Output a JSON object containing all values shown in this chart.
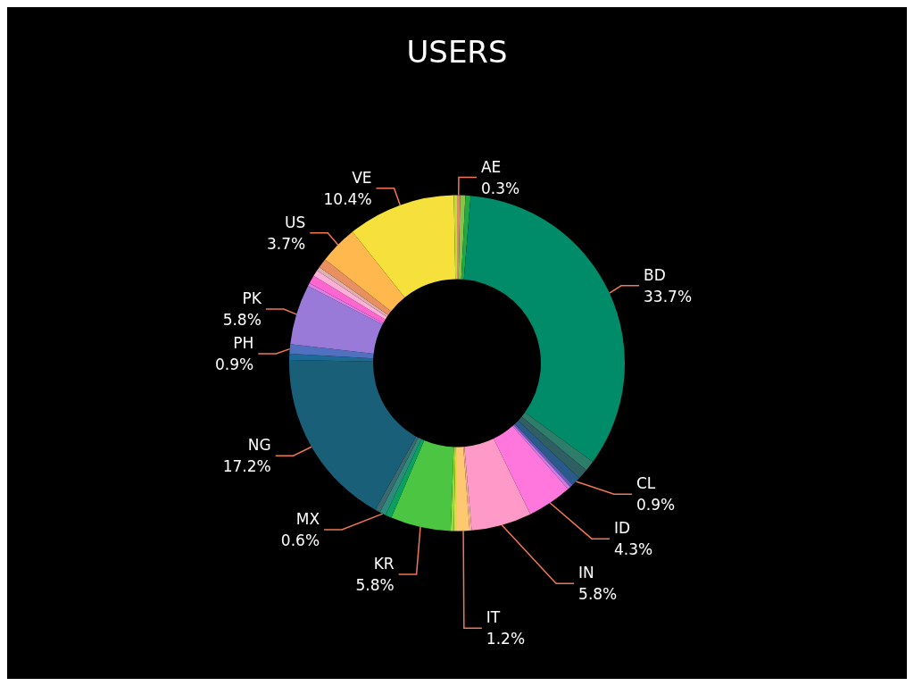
{
  "chart_data": {
    "type": "donut",
    "title": "USERS",
    "legend": false,
    "categories": [
      "AE",
      null,
      null,
      "BD",
      null,
      null,
      "CL",
      null,
      null,
      "ID",
      "IN",
      null,
      "IT",
      null,
      null,
      "KR",
      null,
      "MX",
      null,
      "NG",
      null,
      "PH",
      "PK",
      null,
      null,
      null,
      null,
      null,
      "US",
      "VE",
      null
    ],
    "values": [
      0.3,
      0.5,
      0.5,
      33.7,
      1.0,
      1.0,
      0.9,
      0.3,
      0.3,
      4.3,
      5.8,
      0.2,
      1.2,
      0.3,
      0.3,
      5.8,
      0.6,
      0.6,
      0.5,
      17.2,
      0.6,
      0.9,
      5.8,
      0.3,
      0.8,
      0.6,
      0.4,
      0.9,
      3.7,
      10.4,
      0.3
    ],
    "value_labels": [
      "0.3%",
      null,
      null,
      "33.7%",
      null,
      null,
      "0.9%",
      null,
      null,
      "4.3%",
      "5.8%",
      null,
      "1.2%",
      null,
      null,
      "5.8%",
      null,
      "0.6%",
      null,
      "17.2%",
      null,
      "0.9%",
      "5.8%",
      null,
      null,
      null,
      null,
      null,
      "3.7%",
      "10.4%",
      null
    ],
    "colors": [
      "#d98a6a",
      "#8bc34a",
      "#22a845",
      "#008c69",
      "#2e7d6a",
      "#2f5f63",
      "#2a5a8a",
      "#6a5cc0",
      "#c77fe0",
      "#ff77dd",
      "#ff99c8",
      "#f5b0a0",
      "#ffc870",
      "#d4e040",
      "#a0d840",
      "#4cc542",
      "#0aa060",
      "#2e8a7a",
      "#3a6a70",
      "#1a5f78",
      "#1e6a96",
      "#5070c0",
      "#9a7ad8",
      "#d880e8",
      "#ff66d0",
      "#ffb0d8",
      "#e0b0b0",
      "#e89060",
      "#ffb84d",
      "#f5e03c",
      "#c0e030"
    ]
  }
}
